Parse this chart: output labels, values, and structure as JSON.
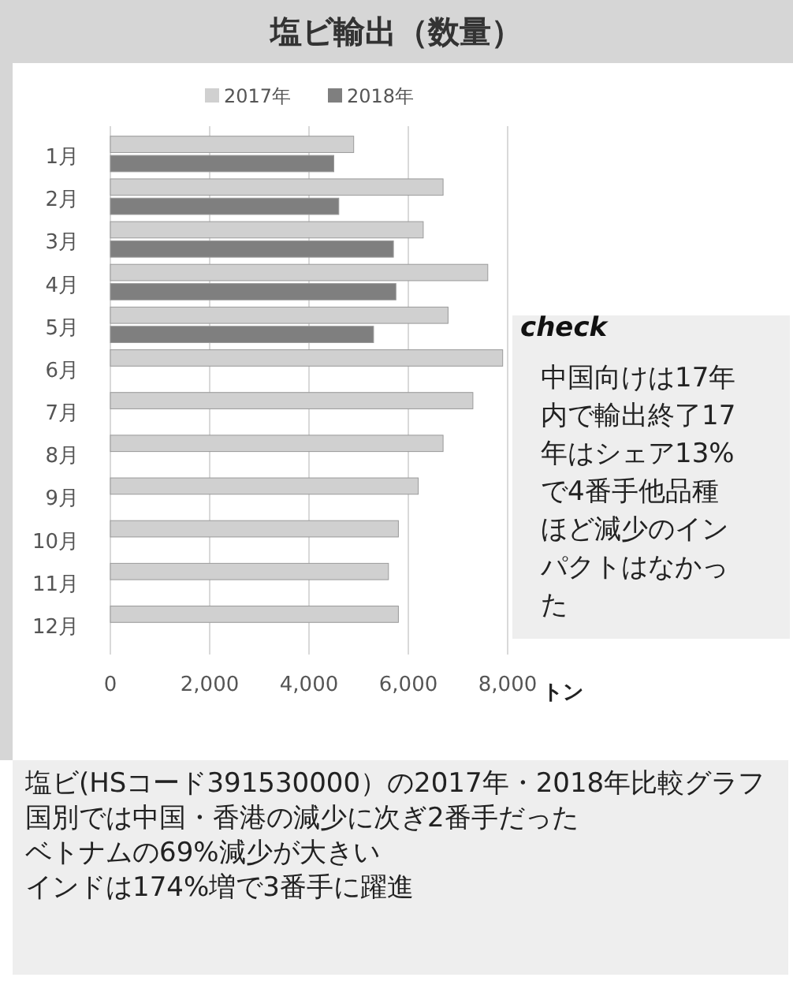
{
  "chart_data": {
    "type": "bar",
    "orientation": "horizontal",
    "title": "塩ビ輸出（数量）",
    "xlabel": "トン",
    "categories": [
      "1月",
      "2月",
      "3月",
      "4月",
      "5月",
      "6月",
      "7月",
      "8月",
      "9月",
      "10月",
      "11月",
      "12月"
    ],
    "series": [
      {
        "name": "2017年",
        "color": "#d0d0d0",
        "values": [
          4900,
          6700,
          6300,
          7600,
          6800,
          7900,
          7300,
          6700,
          6200,
          5800,
          5600,
          5800
        ]
      },
      {
        "name": "2018年",
        "color": "#7f7f7f",
        "values": [
          4500,
          4600,
          5700,
          5750,
          5300,
          null,
          null,
          null,
          null,
          null,
          null,
          null
        ]
      }
    ],
    "xlim": [
      0,
      8000
    ],
    "xticks": [
      {
        "value": 0,
        "label": "0"
      },
      {
        "value": 2000,
        "label": "2,000"
      },
      {
        "value": 4000,
        "label": "4,000"
      },
      {
        "value": 6000,
        "label": "6,000"
      },
      {
        "value": 8000,
        "label": "8,000"
      }
    ],
    "grid": "x",
    "legend": "top",
    "annotations": [
      "check",
      "中国向けは17年内で輸出終了17年はシェア13%で4番手他品種ほど減少のインパクトはなかった",
      "塩ビ(HSコード391530000）の2017年・2018年比較グラフ",
      "国別では中国・香港の減少に次ぎ2番手だった",
      "ベトナムの69%減少が大きい",
      "インドは174%増で3番手に躍進"
    ]
  }
}
